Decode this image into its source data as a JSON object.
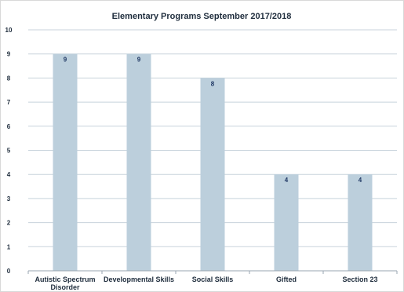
{
  "chart_data": {
    "type": "bar",
    "title": "Elementary Programs September 2017/2018",
    "categories": [
      [
        "Autistic Spectrum",
        "Disorder"
      ],
      [
        "Developmental Skills"
      ],
      [
        "Social Skills"
      ],
      [
        "Gifted"
      ],
      [
        "Section 23"
      ]
    ],
    "values": [
      9,
      9,
      8,
      4,
      4
    ],
    "ylim": [
      0,
      10
    ],
    "yticks": [
      0,
      1,
      2,
      3,
      4,
      5,
      6,
      7,
      8,
      9,
      10
    ],
    "xlabel": "",
    "ylabel": "",
    "grid": true,
    "legend": "none",
    "data_labels": true,
    "colors": {
      "bar": "#bccfdc",
      "grid": "#c8d3dc",
      "axis": "#9aa5b1",
      "text": "#1f2d3d",
      "value_label": "#1f3864"
    }
  }
}
